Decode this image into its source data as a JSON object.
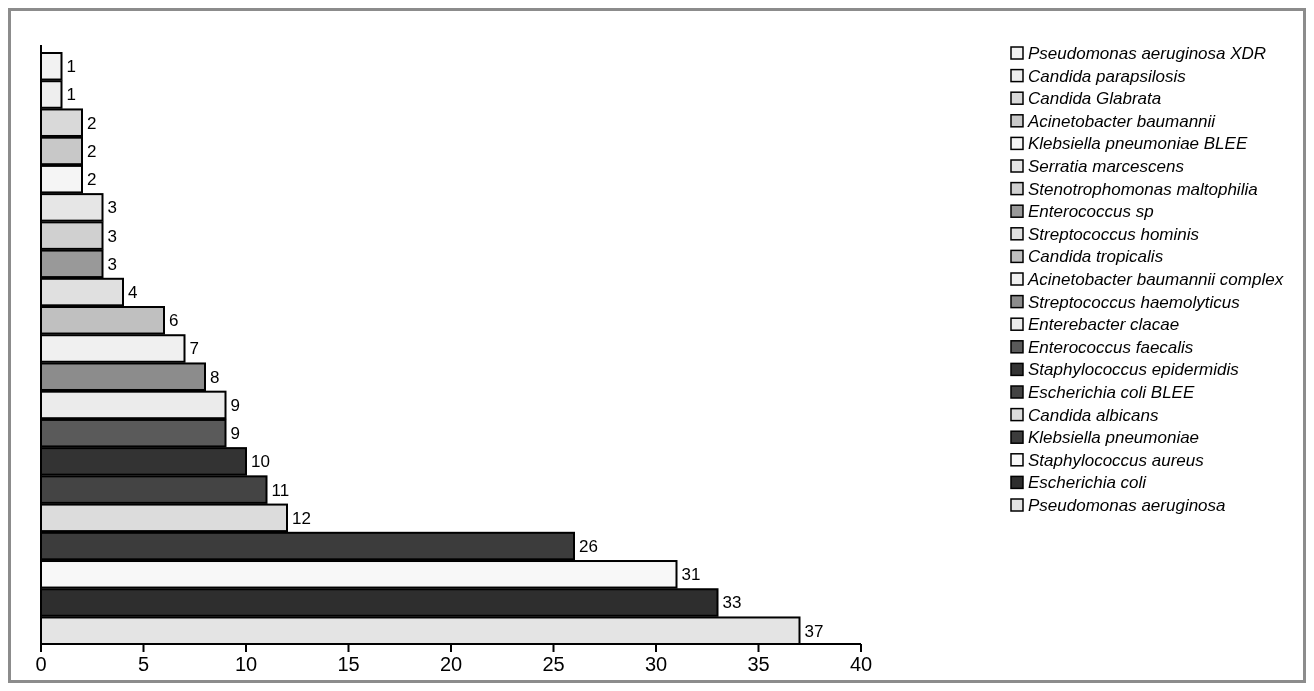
{
  "chart_data": {
    "type": "bar",
    "orientation": "horizontal",
    "categories": [
      null,
      null,
      null,
      null,
      null,
      null,
      null,
      null,
      null,
      null,
      null,
      null,
      null,
      null,
      null,
      null,
      null,
      null,
      null,
      null,
      null
    ],
    "series": [
      {
        "name": "Pseudomonas aeruginosa XDR",
        "color": "#f2f2f2",
        "values": [
          1,
          null,
          null,
          null,
          null,
          null,
          null,
          null,
          null,
          null,
          null,
          null,
          null,
          null,
          null,
          null,
          null,
          null,
          null,
          null,
          null
        ]
      },
      {
        "name": "Candida parapsilosis",
        "color": "#eeeeee",
        "values": [
          null,
          1,
          null,
          null,
          null,
          null,
          null,
          null,
          null,
          null,
          null,
          null,
          null,
          null,
          null,
          null,
          null,
          null,
          null,
          null,
          null
        ]
      },
      {
        "name": "Candida Glabrata",
        "color": "#d9d9d9",
        "values": [
          null,
          null,
          2,
          null,
          null,
          null,
          null,
          null,
          null,
          null,
          null,
          null,
          null,
          null,
          null,
          null,
          null,
          null,
          null,
          null,
          null
        ]
      },
      {
        "name": "Acinetobacter baumannii",
        "color": "#c8c8c8",
        "values": [
          null,
          null,
          null,
          2,
          null,
          null,
          null,
          null,
          null,
          null,
          null,
          null,
          null,
          null,
          null,
          null,
          null,
          null,
          null,
          null,
          null
        ]
      },
      {
        "name": "Klebsiella pneumoniae BLEE",
        "color": "#f5f5f5",
        "values": [
          null,
          null,
          null,
          null,
          2,
          null,
          null,
          null,
          null,
          null,
          null,
          null,
          null,
          null,
          null,
          null,
          null,
          null,
          null,
          null,
          null
        ]
      },
      {
        "name": "Serratia marcescens",
        "color": "#e6e6e6",
        "values": [
          null,
          null,
          null,
          null,
          null,
          3,
          null,
          null,
          null,
          null,
          null,
          null,
          null,
          null,
          null,
          null,
          null,
          null,
          null,
          null,
          null
        ]
      },
      {
        "name": "Stenotrophomonas maltophilia",
        "color": "#d0d0d0",
        "values": [
          null,
          null,
          null,
          null,
          null,
          null,
          3,
          null,
          null,
          null,
          null,
          null,
          null,
          null,
          null,
          null,
          null,
          null,
          null,
          null,
          null
        ]
      },
      {
        "name": "Enterococcus sp",
        "color": "#999999",
        "values": [
          null,
          null,
          null,
          null,
          null,
          null,
          null,
          3,
          null,
          null,
          null,
          null,
          null,
          null,
          null,
          null,
          null,
          null,
          null,
          null,
          null
        ]
      },
      {
        "name": "Streptococcus hominis",
        "color": "#e0e0e0",
        "values": [
          null,
          null,
          null,
          null,
          null,
          null,
          null,
          null,
          4,
          null,
          null,
          null,
          null,
          null,
          null,
          null,
          null,
          null,
          null,
          null,
          null
        ]
      },
      {
        "name": "Candida tropicalis",
        "color": "#c0c0c0",
        "values": [
          null,
          null,
          null,
          null,
          null,
          null,
          null,
          null,
          null,
          6,
          null,
          null,
          null,
          null,
          null,
          null,
          null,
          null,
          null,
          null,
          null
        ]
      },
      {
        "name": "Acinetobacter baumannii complex",
        "color": "#f0f0f0",
        "values": [
          null,
          null,
          null,
          null,
          null,
          null,
          null,
          null,
          null,
          null,
          7,
          null,
          null,
          null,
          null,
          null,
          null,
          null,
          null,
          null,
          null
        ]
      },
      {
        "name": "Streptococcus haemolyticus",
        "color": "#8c8c8c",
        "values": [
          null,
          null,
          null,
          null,
          null,
          null,
          null,
          null,
          null,
          null,
          null,
          8,
          null,
          null,
          null,
          null,
          null,
          null,
          null,
          null,
          null
        ]
      },
      {
        "name": "Enterebacter clacae",
        "color": "#ebebeb",
        "values": [
          null,
          null,
          null,
          null,
          null,
          null,
          null,
          null,
          null,
          null,
          null,
          null,
          9,
          null,
          null,
          null,
          null,
          null,
          null,
          null,
          null
        ]
      },
      {
        "name": "Enterococcus faecalis",
        "color": "#5a5a5a",
        "values": [
          null,
          null,
          null,
          null,
          null,
          null,
          null,
          null,
          null,
          null,
          null,
          null,
          null,
          9,
          null,
          null,
          null,
          null,
          null,
          null,
          null
        ]
      },
      {
        "name": "Staphylococcus epidermidis",
        "color": "#333333",
        "values": [
          null,
          null,
          null,
          null,
          null,
          null,
          null,
          null,
          null,
          null,
          null,
          null,
          null,
          null,
          10,
          null,
          null,
          null,
          null,
          null,
          null
        ]
      },
      {
        "name": "Escherichia coli BLEE",
        "color": "#444444",
        "values": [
          null,
          null,
          null,
          null,
          null,
          null,
          null,
          null,
          null,
          null,
          null,
          null,
          null,
          null,
          null,
          11,
          null,
          null,
          null,
          null,
          null
        ]
      },
      {
        "name": "Candida albicans",
        "color": "#dcdcdc",
        "values": [
          null,
          null,
          null,
          null,
          null,
          null,
          null,
          null,
          null,
          null,
          null,
          null,
          null,
          null,
          null,
          null,
          12,
          null,
          null,
          null,
          null
        ]
      },
      {
        "name": "Klebsiella pneumoniae",
        "color": "#3c3c3c",
        "values": [
          null,
          null,
          null,
          null,
          null,
          null,
          null,
          null,
          null,
          null,
          null,
          null,
          null,
          null,
          null,
          null,
          null,
          26,
          null,
          null,
          null
        ]
      },
      {
        "name": "Staphylococcus aureus",
        "color": "#f8f8f8",
        "values": [
          null,
          null,
          null,
          null,
          null,
          null,
          null,
          null,
          null,
          null,
          null,
          null,
          null,
          null,
          null,
          null,
          null,
          null,
          31,
          null,
          null
        ]
      },
      {
        "name": "Escherichia coli",
        "color": "#2e2e2e",
        "values": [
          null,
          null,
          null,
          null,
          null,
          null,
          null,
          null,
          null,
          null,
          null,
          null,
          null,
          null,
          null,
          null,
          null,
          null,
          null,
          33,
          null
        ]
      },
      {
        "name": "Pseudomonas aeruginosa",
        "color": "#e4e4e4",
        "values": [
          null,
          null,
          null,
          null,
          null,
          null,
          null,
          null,
          null,
          null,
          null,
          null,
          null,
          null,
          null,
          null,
          null,
          null,
          null,
          null,
          37
        ]
      }
    ],
    "xlim": [
      0,
      40
    ],
    "xticks": [
      0,
      5,
      10,
      15,
      20,
      25,
      30,
      35,
      40
    ],
    "data_labels": true,
    "legend": "right",
    "tick_labels": "x"
  }
}
